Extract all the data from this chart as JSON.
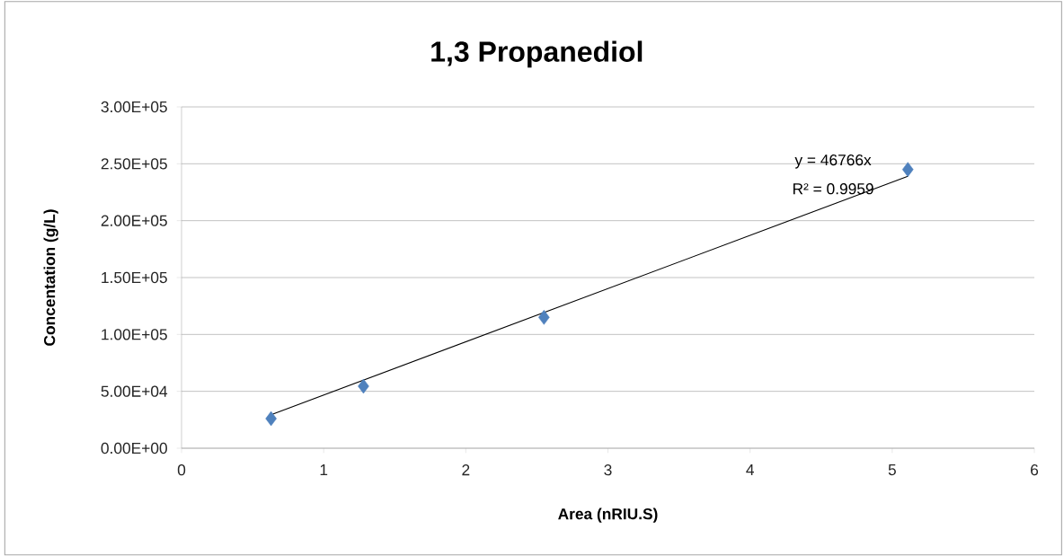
{
  "chart_data": {
    "type": "scatter",
    "title": "1,3 Propanediol",
    "xlabel": "Area (nRIU.S)",
    "ylabel": "Concentation (g/L)",
    "series": [
      {
        "color": "#4f81bd",
        "marker": "diamond",
        "x": [
          0.63,
          1.28,
          2.55,
          5.11
        ],
        "values": [
          26000,
          54500,
          115000,
          245000
        ]
      },
      {
        "type": "line",
        "color": "#000000",
        "marker": "none",
        "line_style": "solid",
        "x": [
          0.63,
          5.11
        ],
        "values": [
          29500,
          239000
        ]
      }
    ],
    "xlim": [
      0,
      6
    ],
    "xticks": [
      0,
      1,
      2,
      3,
      4,
      5,
      6
    ],
    "ylim": [
      0,
      300000
    ],
    "yticks": [
      {
        "value": 0,
        "label": "0.00E+00"
      },
      {
        "value": 50000,
        "label": "5.00E+04"
      },
      {
        "value": 100000,
        "label": "1.00E+05"
      },
      {
        "value": 150000,
        "label": "1.50E+05"
      },
      {
        "value": 200000,
        "label": "2.00E+05"
      },
      {
        "value": 250000,
        "label": "2.50E+05"
      },
      {
        "value": 300000,
        "label": "3.00E+05"
      }
    ],
    "grid": "y",
    "annotations": [
      "y = 46766x",
      "R² = 0.9959"
    ]
  }
}
